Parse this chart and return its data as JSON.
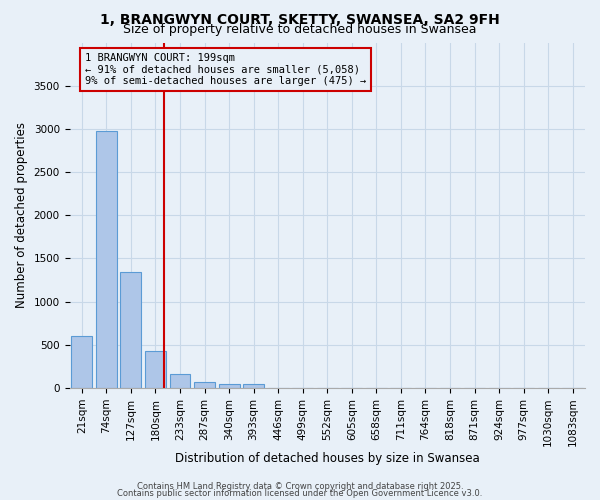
{
  "title": "1, BRANGWYN COURT, SKETTY, SWANSEA, SA2 9FH",
  "subtitle": "Size of property relative to detached houses in Swansea",
  "xlabel": "Distribution of detached houses by size in Swansea",
  "ylabel": "Number of detached properties",
  "categories": [
    "21sqm",
    "74sqm",
    "127sqm",
    "180sqm",
    "233sqm",
    "287sqm",
    "340sqm",
    "393sqm",
    "446sqm",
    "499sqm",
    "552sqm",
    "605sqm",
    "658sqm",
    "711sqm",
    "764sqm",
    "818sqm",
    "871sqm",
    "924sqm",
    "977sqm",
    "1030sqm",
    "1083sqm"
  ],
  "values": [
    600,
    2970,
    1340,
    430,
    160,
    75,
    45,
    45,
    0,
    0,
    0,
    0,
    0,
    0,
    0,
    0,
    0,
    0,
    0,
    0,
    0
  ],
  "bar_color": "#aec6e8",
  "bar_edge_color": "#5b9bd5",
  "grid_color": "#c8d8e8",
  "background_color": "#e8f0f8",
  "vline_color": "#cc0000",
  "annotation_text": "1 BRANGWYN COURT: 199sqm\n← 91% of detached houses are smaller (5,058)\n9% of semi-detached houses are larger (475) →",
  "ylim": [
    0,
    4000
  ],
  "yticks": [
    0,
    500,
    1000,
    1500,
    2000,
    2500,
    3000,
    3500
  ],
  "footer1": "Contains HM Land Registry data © Crown copyright and database right 2025.",
  "footer2": "Contains public sector information licensed under the Open Government Licence v3.0.",
  "title_fontsize": 10,
  "subtitle_fontsize": 9,
  "tick_fontsize": 7.5,
  "ylabel_fontsize": 8.5,
  "xlabel_fontsize": 8.5,
  "annotation_fontsize": 7.5
}
